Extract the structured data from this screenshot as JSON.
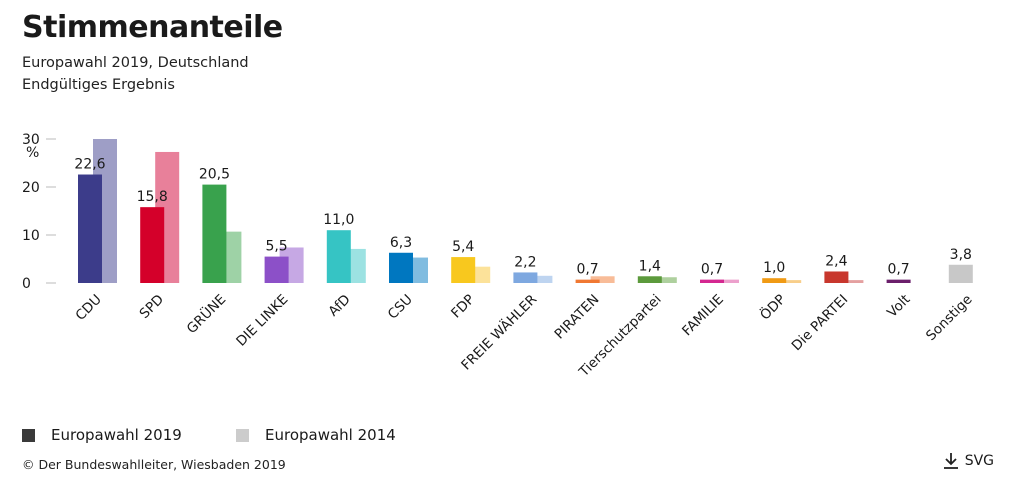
{
  "header": {
    "title": "Stimmenanteile",
    "subtitle1": "Europawahl 2019, Deutschland",
    "subtitle2": "Endgültiges Ergebnis"
  },
  "legend": {
    "series_2019": "Europawahl 2019",
    "series_2014": "Europawahl 2014",
    "swatch_2019_color": "#3a3a3a",
    "swatch_2014_color": "#cccccc"
  },
  "footer": {
    "source": "© Der Bundeswahlleiter, Wiesbaden 2019",
    "download_label": "SVG",
    "download_icon": "download-arrow-icon"
  },
  "chart_data": {
    "type": "bar",
    "ylabel": "%",
    "ylim": [
      0,
      30
    ],
    "yticks": [
      "0",
      "10",
      "20",
      "30"
    ],
    "categories": [
      "CDU",
      "SPD",
      "GRÜNE",
      "DIE LINKE",
      "AfD",
      "CSU",
      "FDP",
      "FREIE WÄHLER",
      "PIRATEN",
      "Tierschutzpartei",
      "FAMILIE",
      "ÖDP",
      "Die PARTEI",
      "Volt",
      "Sonstige"
    ],
    "series": [
      {
        "name": "Europawahl 2019",
        "values": [
          22.6,
          15.8,
          20.5,
          5.5,
          11.0,
          6.3,
          5.4,
          2.2,
          0.7,
          1.4,
          0.7,
          1.0,
          2.4,
          0.7,
          3.8
        ],
        "labels": [
          "22,6",
          "15,8",
          "20,5",
          "5,5",
          "11,0",
          "6,3",
          "5,4",
          "2,2",
          "0,7",
          "1,4",
          "0,7",
          "1,0",
          "2,4",
          "0,7",
          "3,8"
        ],
        "colors": [
          "#3c3c8a",
          "#d4002a",
          "#39a24d",
          "#8c50c8",
          "#36c4c4",
          "#0077c0",
          "#f8c81e",
          "#7ea8e0",
          "#f07832",
          "#5c9a3c",
          "#d42890",
          "#f09a14",
          "#c8372d",
          "#6b1f6b",
          "#c8c8c8"
        ]
      },
      {
        "name": "Europawahl 2014",
        "values": [
          30.0,
          27.3,
          10.7,
          7.4,
          7.1,
          5.3,
          3.4,
          1.5,
          1.4,
          1.2,
          0.7,
          0.6,
          0.6,
          0,
          0
        ],
        "colors": [
          "#9e9ec6",
          "#e8809a",
          "#9ed2a6",
          "#c6a8e4",
          "#9ce2e2",
          "#80bce0",
          "#fce29a",
          "#bed4f0",
          "#f8bc98",
          "#aed09e",
          "#eca0cc",
          "#f8ce8a",
          "#e4a0a0",
          "#b590b5",
          "#e4e4e4"
        ]
      }
    ]
  }
}
